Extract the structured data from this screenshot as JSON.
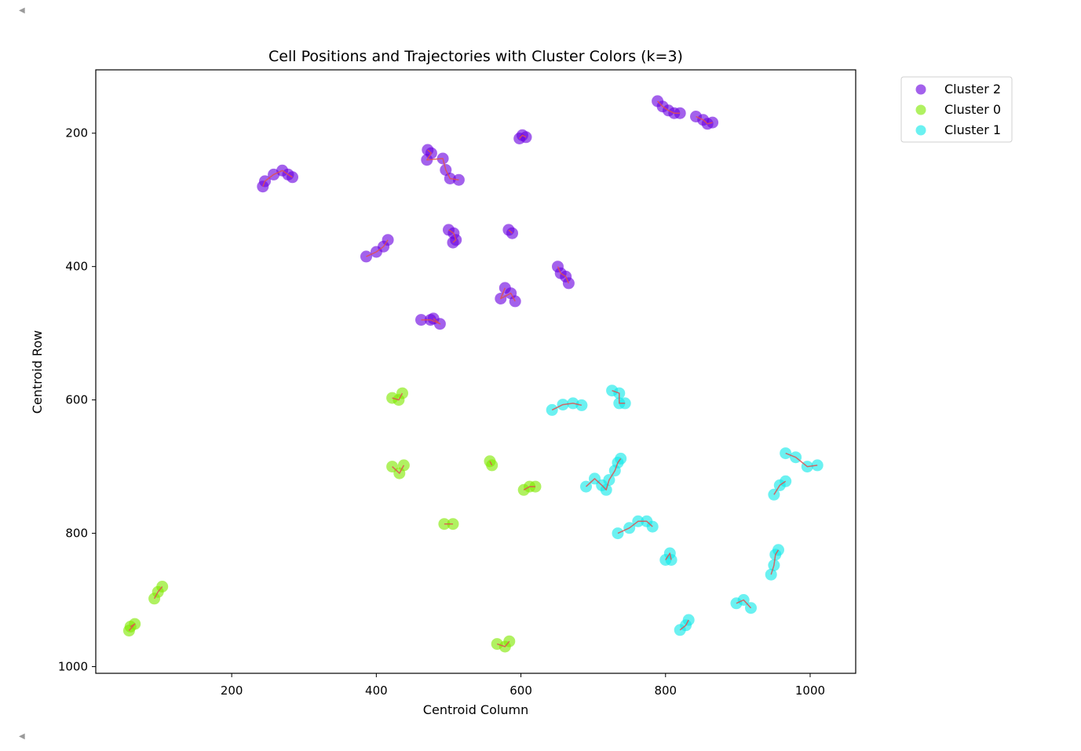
{
  "notebook": {
    "scroll_up_icon": "triangle-left-icon",
    "scroll_down_icon": "triangle-left-icon"
  },
  "chart_data": {
    "type": "scatter",
    "title": "Cell Positions and Trajectories with Cluster Colors (k=3)",
    "xlabel": "Centroid Column",
    "ylabel": "Centroid Row",
    "xlim": [
      12,
      1063
    ],
    "ylim": [
      1010,
      105
    ],
    "y_inverted": true,
    "xticks": [
      200,
      400,
      600,
      800,
      1000
    ],
    "yticks": [
      200,
      400,
      600,
      800,
      1000
    ],
    "grid": false,
    "legend_position": "outside-top-right",
    "trajectory_color": "#e05050",
    "clusters": [
      {
        "name": "Cluster 2",
        "color": "#6a00e0",
        "tracks": [
          [
            [
              243,
              280
            ],
            [
              246,
              272
            ],
            [
              258,
              262
            ],
            [
              270,
              256
            ],
            [
              278,
              262
            ],
            [
              284,
              266
            ]
          ],
          [
            [
              471,
              225
            ],
            [
              476,
              230
            ],
            [
              470,
              240
            ],
            [
              492,
              238
            ],
            [
              496,
              255
            ],
            [
              502,
              268
            ],
            [
              514,
              270
            ]
          ],
          [
            [
              598,
              208
            ],
            [
              602,
              203
            ],
            [
              607,
              206
            ]
          ],
          [
            [
              500,
              345
            ],
            [
              507,
              350
            ],
            [
              510,
              360
            ],
            [
              506,
              364
            ]
          ],
          [
            [
              583,
              345
            ],
            [
              588,
              350
            ]
          ],
          [
            [
              386,
              385
            ],
            [
              400,
              378
            ],
            [
              410,
              370
            ],
            [
              416,
              360
            ]
          ],
          [
            [
              651,
              400
            ],
            [
              655,
              410
            ],
            [
              662,
              415
            ],
            [
              666,
              425
            ]
          ],
          [
            [
              578,
              432
            ],
            [
              572,
              448
            ],
            [
              586,
              440
            ],
            [
              592,
              452
            ]
          ],
          [
            [
              462,
              480
            ],
            [
              475,
              480
            ],
            [
              488,
              486
            ],
            [
              479,
              478
            ]
          ],
          [
            [
              789,
              152
            ],
            [
              796,
              160
            ],
            [
              804,
              166
            ],
            [
              812,
              170
            ],
            [
              820,
              170
            ]
          ],
          [
            [
              842,
              175
            ],
            [
              852,
              180
            ],
            [
              858,
              186
            ],
            [
              865,
              184
            ]
          ]
        ]
      },
      {
        "name": "Cluster 0",
        "color": "#80e800",
        "tracks": [
          [
            [
              422,
              597
            ],
            [
              431,
              600
            ],
            [
              436,
              590
            ]
          ],
          [
            [
              422,
              700
            ],
            [
              432,
              710
            ],
            [
              438,
              698
            ]
          ],
          [
            [
              557,
              692
            ],
            [
              560,
              698
            ]
          ],
          [
            [
              604,
              735
            ],
            [
              612,
              730
            ],
            [
              620,
              730
            ]
          ],
          [
            [
              494,
              786
            ],
            [
              506,
              786
            ]
          ],
          [
            [
              93,
              898
            ],
            [
              98,
              888
            ],
            [
              104,
              880
            ]
          ],
          [
            [
              60,
              940
            ],
            [
              66,
              936
            ],
            [
              58,
              946
            ]
          ],
          [
            [
              567,
              966
            ],
            [
              578,
              970
            ],
            [
              584,
              962
            ]
          ]
        ]
      },
      {
        "name": "Cluster 1",
        "color": "#10e8e8",
        "tracks": [
          [
            [
              643,
              615
            ],
            [
              658,
              607
            ],
            [
              672,
              605
            ],
            [
              684,
              608
            ]
          ],
          [
            [
              726,
              586
            ],
            [
              736,
              590
            ],
            [
              736,
              605
            ],
            [
              744,
              605
            ]
          ],
          [
            [
              690,
              730
            ],
            [
              702,
              718
            ],
            [
              712,
              728
            ],
            [
              718,
              735
            ],
            [
              722,
              720
            ],
            [
              730,
              706
            ],
            [
              734,
              694
            ],
            [
              738,
              688
            ]
          ],
          [
            [
              734,
              800
            ],
            [
              750,
              792
            ],
            [
              762,
              782
            ],
            [
              774,
              782
            ],
            [
              782,
              790
            ]
          ],
          [
            [
              800,
              840
            ],
            [
              806,
              830
            ],
            [
              808,
              840
            ]
          ],
          [
            [
              820,
              945
            ],
            [
              828,
              938
            ],
            [
              832,
              930
            ]
          ],
          [
            [
              898,
              905
            ],
            [
              908,
              900
            ],
            [
              918,
              912
            ]
          ],
          [
            [
              946,
              862
            ],
            [
              950,
              848
            ],
            [
              952,
              832
            ],
            [
              956,
              825
            ]
          ],
          [
            [
              966,
              680
            ],
            [
              980,
              686
            ],
            [
              996,
              700
            ],
            [
              1010,
              698
            ]
          ],
          [
            [
              950,
              742
            ],
            [
              958,
              728
            ],
            [
              966,
              722
            ]
          ]
        ]
      }
    ]
  }
}
